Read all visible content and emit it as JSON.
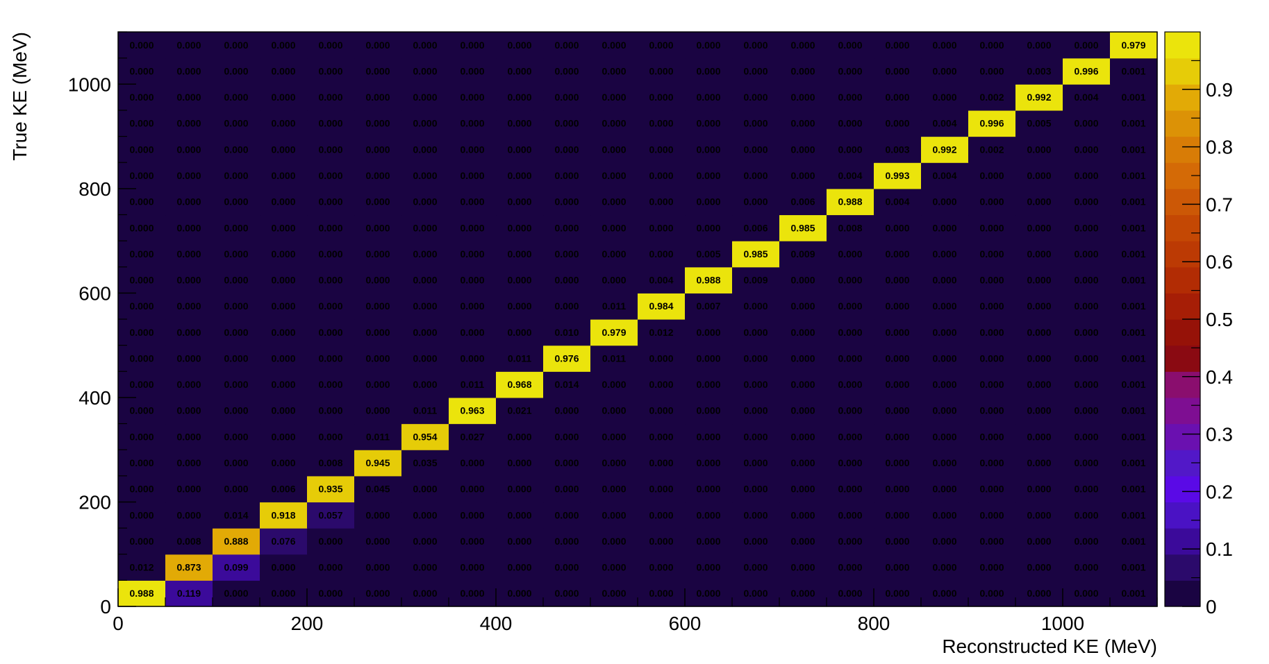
{
  "chart_data": {
    "type": "heatmap",
    "title": "",
    "xlabel": "Reconstructed KE (MeV)",
    "ylabel": "True KE (MeV)",
    "xlim": [
      0,
      1100
    ],
    "ylim": [
      0,
      1100
    ],
    "bin_width": 50,
    "x_ticks": [
      0,
      200,
      400,
      600,
      800,
      1000
    ],
    "y_ticks": [
      0,
      200,
      400,
      600,
      800,
      1000
    ],
    "colorbar": {
      "range": [
        0,
        1
      ],
      "ticks": [
        0,
        0.1,
        0.2,
        0.3,
        0.4,
        0.5,
        0.6,
        0.7,
        0.8,
        0.9
      ],
      "tick_labels": [
        "0",
        "0.1",
        "0.2",
        "0.3",
        "0.4",
        "0.5",
        "0.6",
        "0.7",
        "0.8",
        "0.9"
      ],
      "levels": [
        "#1a0442",
        "#2b0a6b",
        "#3b0a9a",
        "#4a12c4",
        "#5a0ae6",
        "#5218c8",
        "#6a10b0",
        "#7e0e92",
        "#8a0e6e",
        "#8a0a12",
        "#961208",
        "#a61e06",
        "#b22c04",
        "#bc3a04",
        "#c44804",
        "#cc5806",
        "#d46a06",
        "#d87c06",
        "#dc9206",
        "#e2aa06",
        "#e6cc08",
        "#ebe40c"
      ]
    },
    "rows": [
      {
        "y_bin": 0,
        "labels": [
          "0.988",
          "0.119",
          "0.000",
          "0.000",
          "0.000",
          "0.000",
          "0.000",
          "0.000",
          "0.000",
          "0.000",
          "0.000",
          "0.000",
          "0.000",
          "0.000",
          "0.000",
          "0.000",
          "0.000",
          "0.000",
          "0.000",
          "0.000",
          "0.000",
          "0.001"
        ]
      },
      {
        "y_bin": 1,
        "labels": [
          "0.012",
          "0.873",
          "0.099",
          "0.000",
          "0.000",
          "0.000",
          "0.000",
          "0.000",
          "0.000",
          "0.000",
          "0.000",
          "0.000",
          "0.000",
          "0.000",
          "0.000",
          "0.000",
          "0.000",
          "0.000",
          "0.000",
          "0.000",
          "0.000",
          "0.001"
        ]
      },
      {
        "y_bin": 2,
        "labels": [
          "0.000",
          "0.008",
          "0.888",
          "0.076",
          "0.000",
          "0.000",
          "0.000",
          "0.000",
          "0.000",
          "0.000",
          "0.000",
          "0.000",
          "0.000",
          "0.000",
          "0.000",
          "0.000",
          "0.000",
          "0.000",
          "0.000",
          "0.000",
          "0.000",
          "0.001"
        ]
      },
      {
        "y_bin": 3,
        "labels": [
          "0.000",
          "0.000",
          "0.014",
          "0.918",
          "0.057",
          "0.000",
          "0.000",
          "0.000",
          "0.000",
          "0.000",
          "0.000",
          "0.000",
          "0.000",
          "0.000",
          "0.000",
          "0.000",
          "0.000",
          "0.000",
          "0.000",
          "0.000",
          "0.000",
          "0.001"
        ]
      },
      {
        "y_bin": 4,
        "labels": [
          "0.000",
          "0.000",
          "0.000",
          "0.006",
          "0.935",
          "0.045",
          "0.000",
          "0.000",
          "0.000",
          "0.000",
          "0.000",
          "0.000",
          "0.000",
          "0.000",
          "0.000",
          "0.000",
          "0.000",
          "0.000",
          "0.000",
          "0.000",
          "0.000",
          "0.001"
        ]
      },
      {
        "y_bin": 5,
        "labels": [
          "0.000",
          "0.000",
          "0.000",
          "0.000",
          "0.008",
          "0.945",
          "0.035",
          "0.000",
          "0.000",
          "0.000",
          "0.000",
          "0.000",
          "0.000",
          "0.000",
          "0.000",
          "0.000",
          "0.000",
          "0.000",
          "0.000",
          "0.000",
          "0.000",
          "0.001"
        ]
      },
      {
        "y_bin": 6,
        "labels": [
          "0.000",
          "0.000",
          "0.000",
          "0.000",
          "0.000",
          "0.011",
          "0.954",
          "0.027",
          "0.000",
          "0.000",
          "0.000",
          "0.000",
          "0.000",
          "0.000",
          "0.000",
          "0.000",
          "0.000",
          "0.000",
          "0.000",
          "0.000",
          "0.000",
          "0.001"
        ]
      },
      {
        "y_bin": 7,
        "labels": [
          "0.000",
          "0.000",
          "0.000",
          "0.000",
          "0.000",
          "0.000",
          "0.011",
          "0.963",
          "0.021",
          "0.000",
          "0.000",
          "0.000",
          "0.000",
          "0.000",
          "0.000",
          "0.000",
          "0.000",
          "0.000",
          "0.000",
          "0.000",
          "0.000",
          "0.001"
        ]
      },
      {
        "y_bin": 8,
        "labels": [
          "0.000",
          "0.000",
          "0.000",
          "0.000",
          "0.000",
          "0.000",
          "0.000",
          "0.011",
          "0.968",
          "0.014",
          "0.000",
          "0.000",
          "0.000",
          "0.000",
          "0.000",
          "0.000",
          "0.000",
          "0.000",
          "0.000",
          "0.000",
          "0.000",
          "0.001"
        ]
      },
      {
        "y_bin": 9,
        "labels": [
          "0.000",
          "0.000",
          "0.000",
          "0.000",
          "0.000",
          "0.000",
          "0.000",
          "0.000",
          "0.011",
          "0.976",
          "0.011",
          "0.000",
          "0.000",
          "0.000",
          "0.000",
          "0.000",
          "0.000",
          "0.000",
          "0.000",
          "0.000",
          "0.000",
          "0.001"
        ]
      },
      {
        "y_bin": 10,
        "labels": [
          "0.000",
          "0.000",
          "0.000",
          "0.000",
          "0.000",
          "0.000",
          "0.000",
          "0.000",
          "0.000",
          "0.010",
          "0.979",
          "0.012",
          "0.000",
          "0.000",
          "0.000",
          "0.000",
          "0.000",
          "0.000",
          "0.000",
          "0.000",
          "0.000",
          "0.001"
        ]
      },
      {
        "y_bin": 11,
        "labels": [
          "0.000",
          "0.000",
          "0.000",
          "0.000",
          "0.000",
          "0.000",
          "0.000",
          "0.000",
          "0.000",
          "0.000",
          "0.011",
          "0.984",
          "0.007",
          "0.000",
          "0.000",
          "0.000",
          "0.000",
          "0.000",
          "0.000",
          "0.000",
          "0.000",
          "0.001"
        ]
      },
      {
        "y_bin": 12,
        "labels": [
          "0.000",
          "0.000",
          "0.000",
          "0.000",
          "0.000",
          "0.000",
          "0.000",
          "0.000",
          "0.000",
          "0.000",
          "0.000",
          "0.004",
          "0.988",
          "0.009",
          "0.000",
          "0.000",
          "0.000",
          "0.000",
          "0.000",
          "0.000",
          "0.000",
          "0.001"
        ]
      },
      {
        "y_bin": 13,
        "labels": [
          "0.000",
          "0.000",
          "0.000",
          "0.000",
          "0.000",
          "0.000",
          "0.000",
          "0.000",
          "0.000",
          "0.000",
          "0.000",
          "0.000",
          "0.005",
          "0.985",
          "0.009",
          "0.000",
          "0.000",
          "0.000",
          "0.000",
          "0.000",
          "0.000",
          "0.001"
        ]
      },
      {
        "y_bin": 14,
        "labels": [
          "0.000",
          "0.000",
          "0.000",
          "0.000",
          "0.000",
          "0.000",
          "0.000",
          "0.000",
          "0.000",
          "0.000",
          "0.000",
          "0.000",
          "0.000",
          "0.006",
          "0.985",
          "0.008",
          "0.000",
          "0.000",
          "0.000",
          "0.000",
          "0.000",
          "0.001"
        ]
      },
      {
        "y_bin": 15,
        "labels": [
          "0.000",
          "0.000",
          "0.000",
          "0.000",
          "0.000",
          "0.000",
          "0.000",
          "0.000",
          "0.000",
          "0.000",
          "0.000",
          "0.000",
          "0.000",
          "0.000",
          "0.006",
          "0.988",
          "0.004",
          "0.000",
          "0.000",
          "0.000",
          "0.000",
          "0.001"
        ]
      },
      {
        "y_bin": 16,
        "labels": [
          "0.000",
          "0.000",
          "0.000",
          "0.000",
          "0.000",
          "0.000",
          "0.000",
          "0.000",
          "0.000",
          "0.000",
          "0.000",
          "0.000",
          "0.000",
          "0.000",
          "0.000",
          "0.004",
          "0.993",
          "0.004",
          "0.000",
          "0.000",
          "0.000",
          "0.001"
        ]
      },
      {
        "y_bin": 17,
        "labels": [
          "0.000",
          "0.000",
          "0.000",
          "0.000",
          "0.000",
          "0.000",
          "0.000",
          "0.000",
          "0.000",
          "0.000",
          "0.000",
          "0.000",
          "0.000",
          "0.000",
          "0.000",
          "0.000",
          "0.003",
          "0.992",
          "0.002",
          "0.000",
          "0.000",
          "0.001"
        ]
      },
      {
        "y_bin": 18,
        "labels": [
          "0.000",
          "0.000",
          "0.000",
          "0.000",
          "0.000",
          "0.000",
          "0.000",
          "0.000",
          "0.000",
          "0.000",
          "0.000",
          "0.000",
          "0.000",
          "0.000",
          "0.000",
          "0.000",
          "0.000",
          "0.004",
          "0.996",
          "0.005",
          "0.000",
          "0.001"
        ]
      },
      {
        "y_bin": 19,
        "labels": [
          "0.000",
          "0.000",
          "0.000",
          "0.000",
          "0.000",
          "0.000",
          "0.000",
          "0.000",
          "0.000",
          "0.000",
          "0.000",
          "0.000",
          "0.000",
          "0.000",
          "0.000",
          "0.000",
          "0.000",
          "0.000",
          "0.002",
          "0.992",
          "0.004",
          "0.001"
        ]
      },
      {
        "y_bin": 20,
        "labels": [
          "0.000",
          "0.000",
          "0.000",
          "0.000",
          "0.000",
          "0.000",
          "0.000",
          "0.000",
          "0.000",
          "0.000",
          "0.000",
          "0.000",
          "0.000",
          "0.000",
          "0.000",
          "0.000",
          "0.000",
          "0.000",
          "0.000",
          "0.003",
          "0.996",
          "0.001"
        ]
      },
      {
        "y_bin": 21,
        "labels": [
          "0.000",
          "0.000",
          "0.000",
          "0.000",
          "0.000",
          "0.000",
          "0.000",
          "0.000",
          "0.000",
          "0.000",
          "0.000",
          "0.000",
          "0.000",
          "0.000",
          "0.000",
          "0.000",
          "0.000",
          "0.000",
          "0.000",
          "0.000",
          "0.000",
          "0.979"
        ]
      }
    ]
  }
}
